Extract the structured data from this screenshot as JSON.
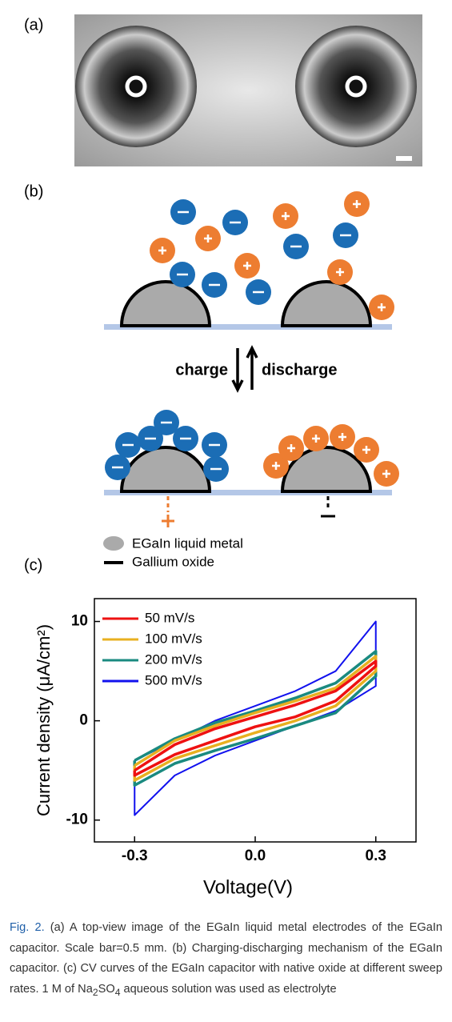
{
  "panels": {
    "a": {
      "label": "(a)"
    },
    "b": {
      "label": "(b)",
      "charge": "charge",
      "discharge": "discharge",
      "legend": [
        "EGaIn liquid metal",
        "Gallium oxide"
      ]
    },
    "c": {
      "label": "(c)"
    }
  },
  "chart_data": {
    "type": "line",
    "x_label": "Voltage(V)",
    "y_label": "Current density (μA/cm²)",
    "xlim": [
      -0.4,
      0.4
    ],
    "ylim": [
      -12.2,
      12.3
    ],
    "xticks": [
      {
        "value": -0.3,
        "label": "-0.3"
      },
      {
        "value": 0,
        "label": "0.0"
      },
      {
        "value": 0.3,
        "label": "0.3"
      }
    ],
    "yticks": [
      {
        "value": -10,
        "label": "-10"
      },
      0,
      10
    ],
    "legend": "upper left",
    "series": [
      {
        "name": "50 mV/s",
        "color": "#ee1111",
        "x": [
          -0.3,
          -0.2,
          -0.1,
          0,
          0.1,
          0.2,
          0.3,
          0.3,
          0.2,
          0.1,
          0,
          -0.1,
          -0.2,
          -0.3,
          -0.3
        ],
        "values": [
          -5,
          -2.4,
          -0.8,
          0.4,
          1.6,
          3,
          6,
          5.5,
          2,
          0.4,
          -0.6,
          -2,
          -3.4,
          -5.5,
          -5
        ]
      },
      {
        "name": "100 mV/s",
        "color": "#e8b020",
        "x": [
          -0.3,
          -0.2,
          -0.1,
          0,
          0.1,
          0.2,
          0.3,
          0.3,
          0.2,
          0.1,
          0,
          -0.1,
          -0.2,
          -0.3,
          -0.3
        ],
        "values": [
          -4.5,
          -2,
          -0.5,
          0.8,
          2,
          3.3,
          6.5,
          5,
          1.5,
          0,
          -1.2,
          -2.5,
          -3.8,
          -6,
          -4.5
        ]
      },
      {
        "name": "200 mV/s",
        "color": "#1a8a80",
        "x": [
          -0.3,
          -0.2,
          -0.1,
          0,
          0.1,
          0.2,
          0.3,
          0.3,
          0.2,
          0.1,
          0,
          -0.1,
          -0.2,
          -0.3,
          -0.3
        ],
        "values": [
          -4,
          -1.8,
          -0.2,
          1,
          2.3,
          3.8,
          7,
          4.5,
          0.8,
          -0.5,
          -1.8,
          -3,
          -4.3,
          -6.5,
          -4
        ]
      },
      {
        "name": "500 mV/s",
        "color": "#1111ee",
        "x": [
          -0.3,
          -0.2,
          -0.1,
          0,
          0.1,
          0.2,
          0.3,
          0.3,
          0.2,
          0.1,
          0,
          -0.1,
          -0.2,
          -0.3,
          -0.3
        ],
        "values": [
          -4,
          -2,
          0,
          1.5,
          3,
          5,
          10,
          3.5,
          1,
          -0.5,
          -2,
          -3.5,
          -5.5,
          -9.5,
          -4
        ]
      }
    ]
  },
  "caption": {
    "fig_label": "Fig. 2.",
    "text": " (a) A top-view image of the EGaIn liquid metal electrodes of the EGaIn capacitor. Scale bar=0.5 mm. (b) Charging-discharging mechanism of the EGaIn capacitor. (c) CV curves of the EGaIn capacitor with native oxide at different sweep rates. 1 M of Na",
    "sub1": "2",
    "mid": "SO",
    "sub2": "4",
    "end": " aqueous solution was used as electrolyte"
  }
}
